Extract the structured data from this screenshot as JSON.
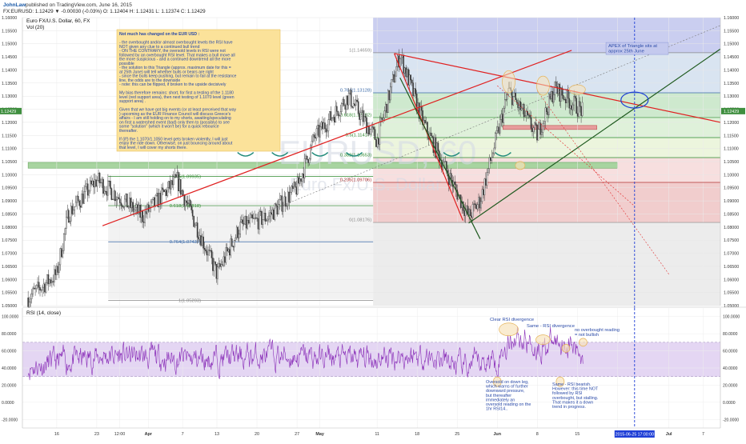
{
  "header": {
    "publisher_user": "JohnLaw",
    "publisher_text": "published on TradingView.com, June 16, 2015",
    "symbol_line": "FX:EURUSD: 1.12429 ▼ -0.00030 (-0.03%) O: 1.12404 H: 1.12431 L: 1.12374 C: 1.12429",
    "chart_title": "Euro FX/U.S. Dollar, 60, FX",
    "indicator_vol": "Vol (20)",
    "rsi_title": "RSI (14, close)"
  },
  "watermark": {
    "line1": "EURUSD, 60",
    "line2": "Euro Fx/U.S. Dollar"
  },
  "colors": {
    "bull": "#3a3a3a",
    "red_line": "#e02020",
    "green_line": "#1f5a1f",
    "blue_line": "#1f3fd6",
    "rsi_line": "#8a2fb8",
    "rsi_band": "#d9c4ee",
    "note_bg": "#fbe29a",
    "note_text": "#2a4aa8",
    "price_badge": "#3f8f3f"
  },
  "note": {
    "lines": [
      "Not much has changed on the EUR USD :",
      "",
      "- the overbought and/or almost overbought levels the RSI have",
      "NOT given any clue to a continued bull trend",
      "- ON THE CONTRARY, the oversold levels in RSI were not",
      "followed by an overbought RSI level. That makes a bull move all",
      "the more suspicious - and a continued downtrend all the more",
      "possible",
      "- the solution to this Triangle (approx. maximum date for this =",
      "at 25th June) will tell whether bulls or bears are right",
      "- since the bulls keep pushing, but remain to fail at the resistance",
      "line, the odds are to the downside",
      "- note: this can be flipped, if broken to the upside decisively",
      "",
      "My bias therefore remains: short, for first a testing of the 1.1180",
      "level (red support area), then next testing of 1.1070 level (green",
      "support area) .",
      "",
      "Given that we have got big events (or at least preceived that way",
      ") upcoming as the EUR Finance Council will discuss Greece's",
      "affairs - I am still holding on to my shorts, awaiting/speculating",
      "on first a watershed event (bad) only then to (possibly) to see",
      "some \"solution\" (which it won't be) for a quick rebounce",
      "thereafter.",
      "",
      "If (if!) the 1.1070/1.1050 level gets broken violently, I will just",
      "enjoy the ride down. Otherwise, on just bouncing around about",
      "that level, I will cover my shorts there."
    ]
  },
  "annotations": {
    "apex_lines": [
      "APEX of Triangle sits at",
      "approx 25th June"
    ],
    "clear_div": "Clear RSI divergence",
    "same_div": "Same - RSI divergence",
    "no_ob_lines": [
      "no overbought reading",
      "= not bullish"
    ],
    "oversold_lines": [
      "Oversold on down leg,",
      "which warns of further",
      "downward pressure,",
      "but thereafter",
      "immediately an",
      "oversold reading on the",
      "1hr RSI14.."
    ],
    "bearish_lines": [
      "Same - RSI bearish.",
      "However: this time NOT",
      "followed by RSI",
      "overbought, but stalling.",
      "That makes it a down",
      "trend in progress."
    ]
  },
  "chart_data": [
    {
      "type": "candlestick",
      "title": "Euro FX/U.S. Dollar, 60, FX",
      "ylim": [
        1.05,
        1.16
      ],
      "y_ticks": [
        "1.16000",
        "1.15500",
        "1.15000",
        "1.14500",
        "1.14000",
        "1.13500",
        "1.13000",
        "1.12500",
        "1.12000",
        "1.11500",
        "1.11000",
        "1.10500",
        "1.10000",
        "1.09500",
        "1.09000",
        "1.08500",
        "1.08000",
        "1.07500",
        "1.07000",
        "1.06500",
        "1.06000",
        "1.05500",
        "1.05000"
      ],
      "last_price": "1.12429",
      "x_tick_labels": [
        "16",
        "23",
        "12:00",
        "Apr",
        "7",
        "13",
        "20",
        "27",
        "May",
        "11",
        "18",
        "25",
        "Jun",
        "8",
        "15",
        "22",
        "Jul",
        "7"
      ],
      "x_tick_dates": [
        "2015-03-16",
        "2015-03-23",
        "2015-03-27",
        "2015-04-01",
        "2015-04-07",
        "2015-04-13",
        "2015-04-20",
        "2015-04-27",
        "2015-05-01",
        "2015-05-11",
        "2015-05-18",
        "2015-05-25",
        "2015-06-01",
        "2015-06-08",
        "2015-06-15",
        "2015-06-22",
        "2015-07-01",
        "2015-07-07"
      ],
      "cursor_date_label": "2015-06-25 17:00:00",
      "path_dates": [
        "2015-03-11",
        "2015-03-16",
        "2015-03-18",
        "2015-03-23",
        "2015-03-26",
        "2015-03-31",
        "2015-04-06",
        "2015-04-13",
        "2015-04-17",
        "2015-04-22",
        "2015-04-27",
        "2015-04-30",
        "2015-05-06",
        "2015-05-11",
        "2015-05-15",
        "2015-05-19",
        "2015-05-27",
        "2015-05-29",
        "2015-06-03",
        "2015-06-08",
        "2015-06-11",
        "2015-06-16"
      ],
      "path_values": [
        1.053,
        1.062,
        1.085,
        1.098,
        1.093,
        1.084,
        1.098,
        1.062,
        1.08,
        1.084,
        1.095,
        1.114,
        1.13,
        1.113,
        1.146,
        1.12,
        1.084,
        1.09,
        1.132,
        1.115,
        1.133,
        1.124
      ],
      "fibonacci": [
        {
          "label": "1(1.14659)",
          "value": 1.14659
        },
        {
          "label": "0.764(1.13128)",
          "value": 1.13128
        },
        {
          "label": "0.618(1.12182)",
          "value": 1.12182
        },
        {
          "label": "0.5(1.11417)",
          "value": 1.11417
        },
        {
          "label": "0.382(1.10653)",
          "value": 1.10653
        },
        {
          "label": "0.236(1.09706)",
          "value": 1.09706
        },
        {
          "label": "0(1.08176)",
          "value": 1.08176
        },
        {
          "label": "0.5(1.09935)",
          "value": 1.09935
        },
        {
          "label": "0.618(1.08818)",
          "value": 1.08818
        },
        {
          "label": "0.764(1.07437)",
          "value": 1.07437
        },
        {
          "label": "1(1.05203)",
          "value": 1.05203
        }
      ]
    },
    {
      "type": "line",
      "title": "RSI (14, close)",
      "ylim": [
        -30,
        110
      ],
      "y_ticks": [
        "100.0000",
        "80.0000",
        "60.0000",
        "40.0000",
        "20.0000",
        "0.0000",
        "-20.0000"
      ],
      "band": [
        30,
        70
      ],
      "path_dates": [
        "2015-03-11",
        "2015-03-25",
        "2015-04-08",
        "2015-04-22",
        "2015-05-06",
        "2015-05-19",
        "2015-05-26",
        "2015-06-01",
        "2015-06-04",
        "2015-06-08",
        "2015-06-12",
        "2015-06-16"
      ],
      "path_values": [
        42,
        55,
        50,
        54,
        51,
        55,
        40,
        52,
        80,
        64,
        72,
        54
      ]
    }
  ]
}
